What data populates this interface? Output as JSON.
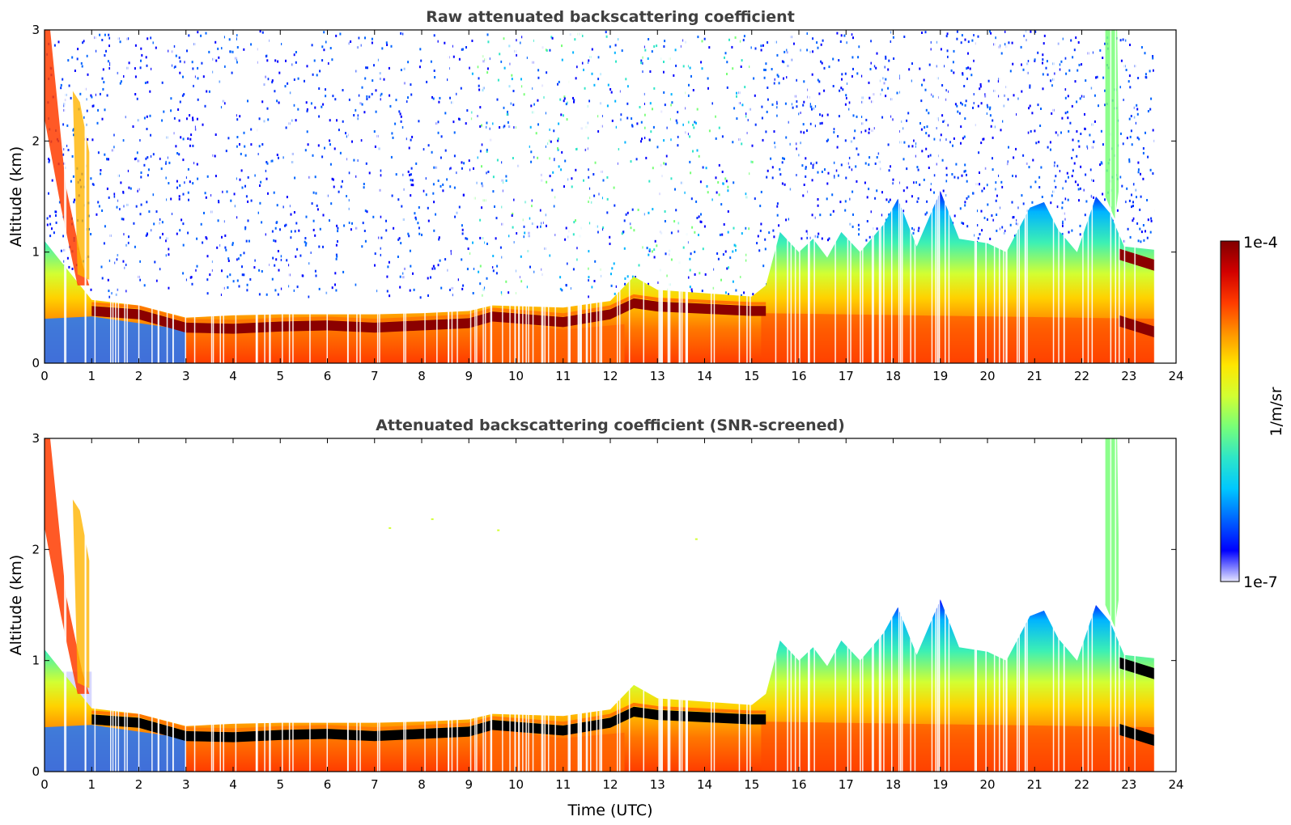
{
  "chart_data": [
    {
      "type": "heatmap",
      "title": "Raw attenuated backscattering coefficient",
      "xlabel": "",
      "ylabel": "Altitude (km)",
      "xlim": [
        0,
        24
      ],
      "ylim": [
        0,
        3
      ],
      "xticks": [
        "0",
        "1",
        "2",
        "3",
        "4",
        "5",
        "6",
        "7",
        "8",
        "9",
        "10",
        "11",
        "12",
        "13",
        "14",
        "15",
        "16",
        "17",
        "18",
        "19",
        "20",
        "21",
        "22",
        "23",
        "24"
      ],
      "yticks": [
        "0",
        "1",
        "2",
        "3"
      ],
      "data_end_hour": 23.55,
      "boundary_layer_top_km": [
        [
          0,
          1.1
        ],
        [
          1,
          0.57
        ],
        [
          2,
          0.52
        ],
        [
          3,
          0.41
        ],
        [
          4,
          0.43
        ],
        [
          5,
          0.44
        ],
        [
          6,
          0.44
        ],
        [
          7,
          0.44
        ],
        [
          8,
          0.45
        ],
        [
          9,
          0.47
        ],
        [
          9.5,
          0.52
        ],
        [
          11,
          0.5
        ],
        [
          12,
          0.56
        ],
        [
          12.5,
          0.78
        ],
        [
          13,
          0.66
        ],
        [
          14,
          0.63
        ],
        [
          15,
          0.6
        ],
        [
          15.3,
          0.7
        ],
        [
          15.6,
          1.18
        ],
        [
          16,
          1.0
        ],
        [
          16.3,
          1.12
        ],
        [
          16.6,
          0.95
        ],
        [
          16.9,
          1.18
        ],
        [
          17.3,
          1.0
        ],
        [
          17.8,
          1.25
        ],
        [
          18.1,
          1.48
        ],
        [
          18.5,
          1.05
        ],
        [
          19,
          1.55
        ],
        [
          19.4,
          1.12
        ],
        [
          20,
          1.08
        ],
        [
          20.4,
          1.0
        ],
        [
          20.9,
          1.4
        ],
        [
          21.2,
          1.45
        ],
        [
          21.5,
          1.2
        ],
        [
          21.9,
          1.0
        ],
        [
          22.3,
          1.5
        ],
        [
          22.6,
          1.35
        ],
        [
          22.9,
          1.05
        ],
        [
          23.55,
          1.02
        ]
      ],
      "dense_layer_km": [
        [
          1,
          0.48
        ],
        [
          2,
          0.45
        ],
        [
          3,
          0.33
        ],
        [
          4,
          0.32
        ],
        [
          5,
          0.34
        ],
        [
          6,
          0.35
        ],
        [
          7,
          0.33
        ],
        [
          8,
          0.35
        ],
        [
          9,
          0.37
        ],
        [
          9.5,
          0.43
        ],
        [
          11,
          0.38
        ],
        [
          12,
          0.45
        ],
        [
          12.5,
          0.55
        ],
        [
          13,
          0.52
        ],
        [
          14,
          0.5
        ],
        [
          15,
          0.48
        ],
        [
          15.3,
          0.48
        ]
      ],
      "upper_layer_km": [
        [
          22.8,
          0.98
        ],
        [
          23.55,
          0.88
        ]
      ],
      "lower_layer_km": [
        [
          22.8,
          0.38
        ],
        [
          23.55,
          0.28
        ]
      ]
    },
    {
      "type": "heatmap",
      "title": "Attenuated backscattering coefficient (SNR-screened)",
      "xlabel": "Time (UTC)",
      "ylabel": "Altitude (km)",
      "xlim": [
        0,
        24
      ],
      "ylim": [
        0,
        3
      ],
      "xticks": [
        "0",
        "1",
        "2",
        "3",
        "4",
        "5",
        "6",
        "7",
        "8",
        "9",
        "10",
        "11",
        "12",
        "13",
        "14",
        "15",
        "16",
        "17",
        "18",
        "19",
        "20",
        "21",
        "22",
        "23",
        "24"
      ],
      "yticks": [
        "0",
        "1",
        "2",
        "3"
      ]
    }
  ],
  "colorbar": {
    "label": "1/m/sr",
    "max_label": "1e-4",
    "min_label": "1e-7",
    "colormap": [
      "#e6e6ff",
      "#0000ff",
      "#0064ff",
      "#00c8ff",
      "#2ee6c8",
      "#78ff78",
      "#d2ff32",
      "#ffe600",
      "#ff9600",
      "#ff3c00",
      "#d20000",
      "#800000"
    ]
  }
}
